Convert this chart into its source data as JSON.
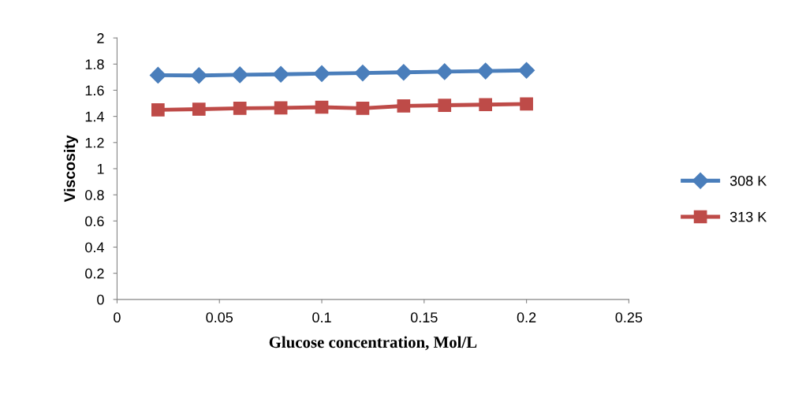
{
  "chart_data": {
    "type": "line",
    "xlabel": "Glucose concentration, Mol/L",
    "ylabel": "Viscosity",
    "x": [
      0.02,
      0.04,
      0.06,
      0.08,
      0.1,
      0.12,
      0.14,
      0.16,
      0.18,
      0.2
    ],
    "series": [
      {
        "name": "308 K",
        "color": "#4a7ebb",
        "marker": "diamond",
        "values": [
          1.715,
          1.713,
          1.718,
          1.722,
          1.727,
          1.732,
          1.737,
          1.742,
          1.747,
          1.752
        ]
      },
      {
        "name": "313 K",
        "color": "#be4b48",
        "marker": "square",
        "values": [
          1.45,
          1.455,
          1.462,
          1.465,
          1.47,
          1.462,
          1.48,
          1.485,
          1.49,
          1.495
        ]
      }
    ],
    "xlim": [
      0,
      0.25
    ],
    "xticks": [
      0,
      0.05,
      0.1,
      0.15,
      0.2,
      0.25
    ],
    "ylim": [
      0,
      2
    ],
    "yticks": [
      0,
      0.2,
      0.4,
      0.6,
      0.8,
      1,
      1.2,
      1.4,
      1.6,
      1.8,
      2
    ],
    "grid": false,
    "legend": "right",
    "line_style": "solid"
  }
}
